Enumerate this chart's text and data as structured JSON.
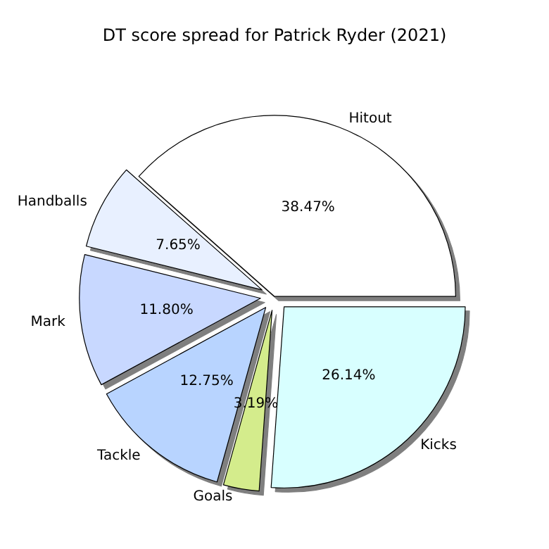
{
  "chart_data": {
    "type": "pie",
    "title": "DT score spread for Patrick Ryder (2021)",
    "categories": [
      "Hitout",
      "Handballs",
      "Mark",
      "Tackle",
      "Goals",
      "Kicks"
    ],
    "values": [
      38.47,
      7.65,
      11.8,
      12.75,
      3.19,
      26.14
    ],
    "value_labels": [
      "38.47%",
      "7.65%",
      "11.80%",
      "12.75%",
      "3.19%",
      "26.14%"
    ],
    "colors": [
      "#ffffff",
      "#e8f0ff",
      "#c8d8ff",
      "#b8d4ff",
      "#d4ec8c",
      "#d8ffff"
    ],
    "legend": false
  }
}
